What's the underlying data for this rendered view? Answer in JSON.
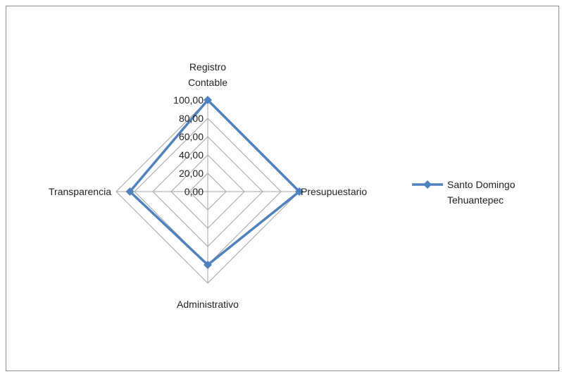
{
  "chart_data": {
    "type": "radar",
    "categories": [
      [
        "Registro",
        "Contable"
      ],
      [
        "Presupuestario"
      ],
      [
        "Administrativo"
      ],
      [
        "Transparencia"
      ]
    ],
    "axis_ticks": [
      "0,00",
      "20,00",
      "40,00",
      "60,00",
      "80,00",
      "100,00"
    ],
    "ylim": [
      0,
      100
    ],
    "series": [
      {
        "name": [
          "Santo Domingo",
          "Tehuantepec"
        ],
        "values": [
          100,
          100,
          80,
          85
        ],
        "color": "#4f81bd"
      }
    ],
    "grid_color": "#a6a6a6",
    "legend_position": "right"
  }
}
